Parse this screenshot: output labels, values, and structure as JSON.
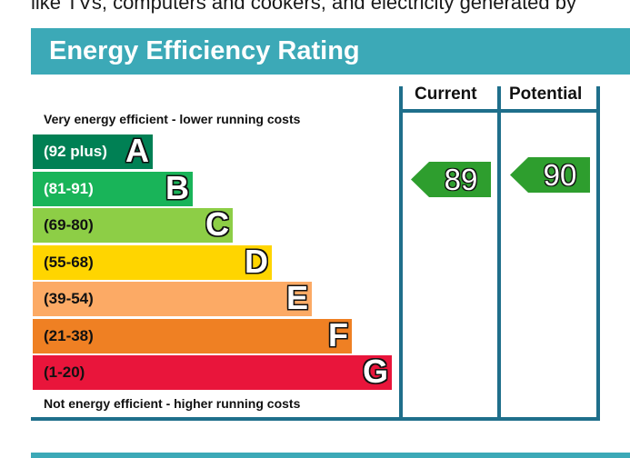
{
  "intro_text": "like TVs, computers and cookers, and electricity generated by",
  "title": "Energy Efficiency Rating",
  "headers": {
    "current": "Current",
    "potential": "Potential"
  },
  "captions": {
    "top": "Very energy efficient - lower running costs",
    "bottom": "Not energy efficient - higher running costs"
  },
  "bands": [
    {
      "range": "(92 plus)",
      "letter": "A",
      "color": "#008054",
      "text_color": "#ffffff"
    },
    {
      "range": "(81-91)",
      "letter": "B",
      "color": "#19b459",
      "text_color": "#ffffff"
    },
    {
      "range": "(69-80)",
      "letter": "C",
      "color": "#8dce46",
      "text_color": "#111111"
    },
    {
      "range": "(55-68)",
      "letter": "D",
      "color": "#ffd500",
      "text_color": "#111111"
    },
    {
      "range": "(39-54)",
      "letter": "E",
      "color": "#fcaa65",
      "text_color": "#111111"
    },
    {
      "range": "(21-38)",
      "letter": "F",
      "color": "#ef8023",
      "text_color": "#111111"
    },
    {
      "range": "(1-20)",
      "letter": "G",
      "color": "#e9153b",
      "text_color": "#111111"
    }
  ],
  "ratings": {
    "current": {
      "value": "89",
      "band": "B",
      "color": "#2e9e2e"
    },
    "potential": {
      "value": "90",
      "band": "B",
      "color": "#2e9e2e"
    }
  }
}
